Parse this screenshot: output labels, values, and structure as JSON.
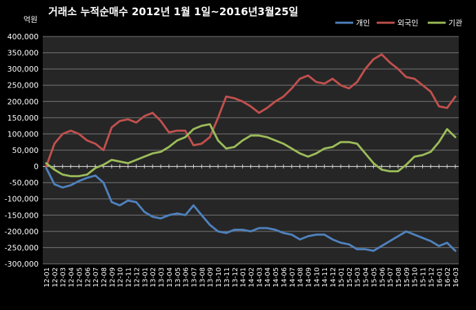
{
  "chart_data": {
    "type": "line",
    "title": "거래소 누적순매수 2012년 1월 1일~2016년3월25일",
    "unit_label": "억원",
    "ylim": [
      -300000,
      400000
    ],
    "y_ticks": [
      400000,
      350000,
      300000,
      250000,
      200000,
      150000,
      100000,
      50000,
      0,
      -50000,
      -100000,
      -150000,
      -200000,
      -250000,
      -300000
    ],
    "y_tick_labels": [
      "400,000",
      "350,000",
      "300,000",
      "250,000",
      "200,000",
      "150,000",
      "100,000",
      "50,000",
      "0",
      "-50,000",
      "-100,000",
      "-150,000",
      "-200,000",
      "-250,000",
      "-300,000"
    ],
    "x_tick_labels": [
      "12-01",
      "12-02",
      "12-03",
      "12-04",
      "12-05",
      "12-06",
      "12-07",
      "12-08",
      "12-09",
      "12-10",
      "12-11",
      "12-12",
      "13-01",
      "13-02",
      "13-03",
      "13-04",
      "13-05",
      "13-06",
      "13-07",
      "13-08",
      "13-09",
      "13-10",
      "13-11",
      "13-12",
      "14-01",
      "14-02",
      "14-03",
      "14-04",
      "14-05",
      "14-06",
      "14-07",
      "14-08",
      "14-09",
      "14-10",
      "14-11",
      "14-12",
      "15-01",
      "15-02",
      "15-03",
      "15-04",
      "15-05",
      "15-06",
      "15-07",
      "15-08",
      "15-09",
      "15-10",
      "15-11",
      "15-12",
      "16-01",
      "16-02",
      "16-03"
    ],
    "grid": true,
    "legend_position": "top-right",
    "series": [
      {
        "name": "개인",
        "color": "#4F81BD",
        "values": [
          -5000,
          -55000,
          -65000,
          -58000,
          -45000,
          -35000,
          -28000,
          -50000,
          -110000,
          -120000,
          -105000,
          -110000,
          -140000,
          -155000,
          -160000,
          -150000,
          -145000,
          -150000,
          -120000,
          -150000,
          -180000,
          -200000,
          -205000,
          -195000,
          -195000,
          -200000,
          -190000,
          -190000,
          -195000,
          -205000,
          -210000,
          -225000,
          -215000,
          -210000,
          -210000,
          -225000,
          -235000,
          -240000,
          -255000,
          -255000,
          -260000,
          -245000,
          -230000,
          -215000,
          -200000,
          -210000,
          -220000,
          -230000,
          -245000,
          -235000,
          -260000
        ]
      },
      {
        "name": "외국인",
        "color": "#C0504D",
        "values": [
          0,
          70000,
          100000,
          110000,
          100000,
          80000,
          70000,
          50000,
          120000,
          140000,
          145000,
          135000,
          155000,
          165000,
          140000,
          105000,
          110000,
          110000,
          65000,
          70000,
          90000,
          150000,
          215000,
          210000,
          200000,
          185000,
          165000,
          180000,
          200000,
          215000,
          240000,
          270000,
          280000,
          260000,
          255000,
          270000,
          250000,
          240000,
          260000,
          300000,
          330000,
          345000,
          320000,
          300000,
          275000,
          270000,
          250000,
          230000,
          185000,
          180000,
          215000
        ]
      },
      {
        "name": "기관",
        "color": "#9BBB59",
        "values": [
          10000,
          -10000,
          -25000,
          -30000,
          -30000,
          -25000,
          -5000,
          5000,
          20000,
          15000,
          10000,
          20000,
          30000,
          40000,
          45000,
          60000,
          80000,
          90000,
          115000,
          125000,
          130000,
          80000,
          55000,
          60000,
          80000,
          95000,
          95000,
          90000,
          80000,
          70000,
          55000,
          40000,
          30000,
          40000,
          55000,
          60000,
          75000,
          75000,
          70000,
          40000,
          10000,
          -10000,
          -15000,
          -15000,
          5000,
          30000,
          35000,
          45000,
          75000,
          115000,
          90000
        ]
      }
    ]
  }
}
